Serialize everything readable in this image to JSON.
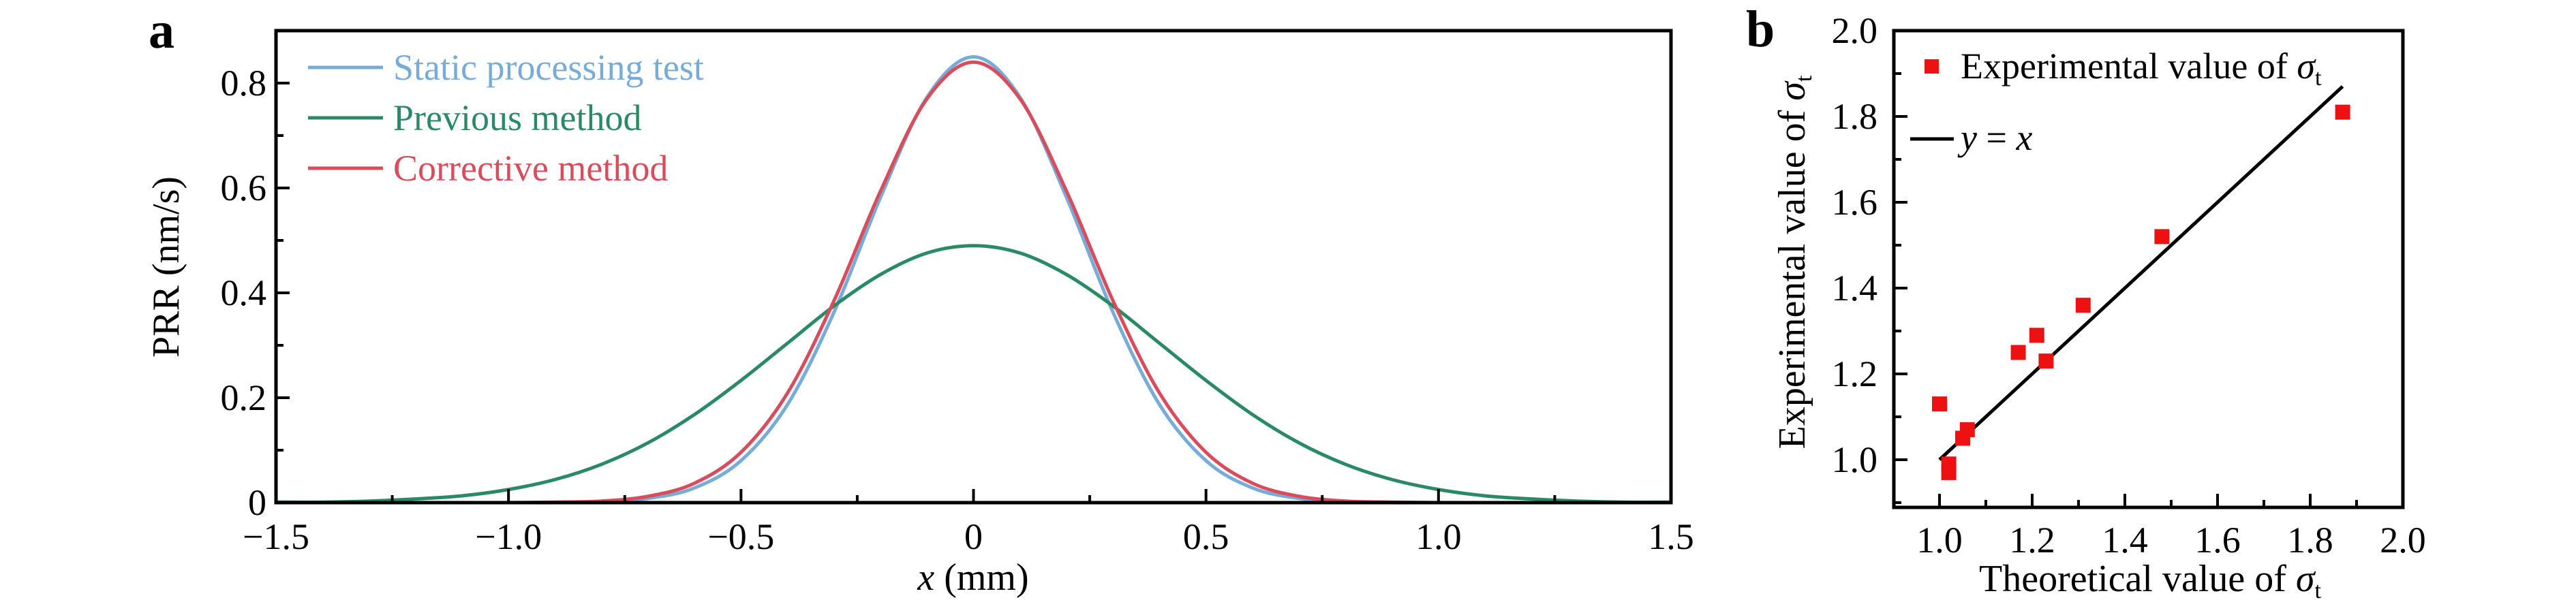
{
  "panels": {
    "a": "a",
    "b": "b"
  },
  "chart_data": [
    {
      "type": "line",
      "id": "a",
      "xlabel_var": "x",
      "xlabel_unit": " (mm)",
      "ylabel": "PRR (nm/s)",
      "xlim": [
        -1.5,
        1.5
      ],
      "ylim": [
        0,
        0.9
      ],
      "x_ticks": [
        -1.5,
        -1.0,
        -0.5,
        0,
        0.5,
        1.0,
        1.5
      ],
      "x_tick_labels": [
        "−1.5",
        "−1.0",
        "−0.5",
        "0",
        "0.5",
        "1.0",
        "1.5"
      ],
      "x_minor_step": 0.25,
      "y_ticks": [
        0,
        0.2,
        0.4,
        0.6,
        0.8
      ],
      "y_tick_labels": [
        "0",
        "0.2",
        "0.4",
        "0.6",
        "0.8"
      ],
      "y_minor_step": 0.1,
      "legend_position": "top-left",
      "grid": false,
      "x": [
        -1.5,
        -1.4,
        -1.3,
        -1.2,
        -1.1,
        -1.0,
        -0.9,
        -0.8,
        -0.7,
        -0.6,
        -0.5,
        -0.4,
        -0.3,
        -0.2,
        -0.1,
        0,
        0.1,
        0.2,
        0.3,
        0.4,
        0.5,
        0.6,
        0.7,
        0.8,
        0.9,
        1.0,
        1.1,
        1.2,
        1.3,
        1.4,
        1.5
      ],
      "series": [
        {
          "name": "Static processing test",
          "color": "#78acd8",
          "values": [
            0,
            0,
            0,
            0,
            0,
            0,
            0,
            0.002,
            0.008,
            0.028,
            0.08,
            0.187,
            0.363,
            0.582,
            0.773,
            0.85,
            0.773,
            0.582,
            0.363,
            0.187,
            0.08,
            0.028,
            0.008,
            0.002,
            0,
            0,
            0,
            0,
            0,
            0,
            0
          ]
        },
        {
          "name": "Previous method",
          "color": "#2b8a66",
          "values": [
            0.001,
            0.001,
            0.003,
            0.007,
            0.013,
            0.025,
            0.044,
            0.073,
            0.114,
            0.168,
            0.233,
            0.304,
            0.375,
            0.435,
            0.476,
            0.49,
            0.476,
            0.435,
            0.375,
            0.304,
            0.233,
            0.168,
            0.114,
            0.073,
            0.044,
            0.025,
            0.013,
            0.007,
            0.003,
            0.001,
            0.001
          ]
        },
        {
          "name": "Corrective method",
          "color": "#d84c5c",
          "values": [
            0,
            0,
            0,
            0,
            0,
            0,
            0.001,
            0.003,
            0.012,
            0.037,
            0.096,
            0.209,
            0.385,
            0.594,
            0.77,
            0.84,
            0.77,
            0.594,
            0.385,
            0.209,
            0.096,
            0.037,
            0.012,
            0.003,
            0.001,
            0,
            0,
            0,
            0,
            0,
            0
          ]
        }
      ]
    },
    {
      "type": "scatter",
      "id": "b",
      "xlabel": "Theoretical value of ",
      "ylabel": "Experimental value of ",
      "sigma": "σ",
      "sigma_sub": "t",
      "xlim": [
        0.9,
        2.0
      ],
      "ylim": [
        0.89,
        2.0
      ],
      "x_ticks": [
        1.0,
        1.2,
        1.4,
        1.6,
        1.8,
        2.0
      ],
      "x_tick_labels": [
        "1.0",
        "1.2",
        "1.4",
        "1.6",
        "1.8",
        "2.0"
      ],
      "y_ticks": [
        1.0,
        1.2,
        1.4,
        1.6,
        1.8,
        2.0
      ],
      "y_tick_labels": [
        "1.0",
        "1.2",
        "1.4",
        "1.6",
        "1.8",
        "2.0"
      ],
      "minor_step": 0.1,
      "legend_position": "top-left",
      "grid": false,
      "points": {
        "name": "Experimental value of ",
        "color": "#ee1111",
        "x": [
          1.0,
          1.02,
          1.02,
          1.05,
          1.06,
          1.17,
          1.21,
          1.23,
          1.31,
          1.48,
          1.87
        ],
        "y": [
          1.13,
          0.99,
          0.97,
          1.05,
          1.07,
          1.25,
          1.29,
          1.23,
          1.36,
          1.52,
          1.81
        ]
      },
      "reference_line": {
        "name_y": "y",
        "name_eq": " = ",
        "name_x": "x",
        "x": [
          1.0,
          1.87
        ],
        "y": [
          1.0,
          1.87
        ],
        "color": "#000000"
      }
    }
  ]
}
